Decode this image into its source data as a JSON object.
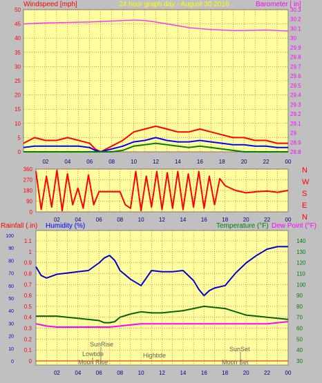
{
  "header": {
    "title": "24 hour graph day - August 30 2016",
    "left_label": "Windspeed [mph]",
    "right_label": "Barometer [ in]"
  },
  "middle": {
    "direction_labels": [
      "N",
      "W",
      "S",
      "E",
      "N"
    ]
  },
  "bottom": {
    "left_label_rain": "Rainfall (.in)",
    "left_label_humidity": "Humidity (%)",
    "right_label_temp": "Temperature (°F)",
    "right_label_dew": "Dew Point (°F)",
    "events": [
      "SunRise",
      "Lowtide",
      "Moon Rise",
      "Hightide",
      "SunSet",
      "Moon Set"
    ]
  },
  "colors": {
    "plot_bg": "#ffffa0",
    "frame_bg": "#c0c0c0",
    "wind_gust": "#ff0000",
    "wind_avg": "#0000ff",
    "wind_low": "#008000",
    "barometer": "#ff33ff",
    "direction": "#ff0000",
    "humidity": "#0000cc",
    "temperature": "#006400",
    "dewpoint": "#ff00ff",
    "title_text": "#ffff00",
    "grid": "#ff0000"
  },
  "chart_data": [
    {
      "type": "line",
      "title": "24 hour graph day - August 30 2016",
      "x_ticks": [
        "02",
        "04",
        "06",
        "08",
        "10",
        "12",
        "14",
        "16",
        "18",
        "20",
        "22",
        "00"
      ],
      "ylabel": "Windspeed [mph]",
      "ylim": [
        0,
        50
      ],
      "y_ticks": [
        0,
        5,
        10,
        15,
        20,
        25,
        30,
        35,
        40,
        45,
        50
      ],
      "y2label": "Barometer [ in]",
      "y2lim": [
        28.8,
        30.3
      ],
      "y2_ticks": [
        "28.8",
        "28.9",
        "29",
        "29.1",
        "29.2",
        "29.3",
        "29.4",
        "29.5",
        "29.6",
        "29.7",
        "29.8",
        "29.9",
        "30",
        "30.1",
        "30.2",
        "30.3"
      ],
      "series": [
        {
          "name": "Barometer",
          "axis": "right",
          "x": [
            0,
            2,
            4,
            6,
            8,
            9,
            10,
            11,
            12,
            13,
            14,
            15,
            16,
            17,
            18,
            19,
            20,
            21,
            22,
            23,
            24
          ],
          "values": [
            30.15,
            30.16,
            30.165,
            30.17,
            30.18,
            30.185,
            30.19,
            30.185,
            30.17,
            30.15,
            30.13,
            30.11,
            30.1,
            30.09,
            30.085,
            30.08,
            30.08,
            30.082,
            30.085,
            30.08,
            30.075
          ]
        },
        {
          "name": "Windspeed gust",
          "axis": "left",
          "x": [
            0,
            1,
            2,
            3,
            4,
            5,
            6,
            6.5,
            7,
            8,
            9,
            10,
            11,
            12,
            13,
            14,
            15,
            16,
            17,
            18,
            19,
            20,
            21,
            22,
            23,
            24
          ],
          "values": [
            3,
            5,
            4,
            4,
            5,
            4,
            3,
            1,
            0,
            2,
            4,
            7,
            8,
            9,
            8,
            7,
            7,
            8,
            7,
            6,
            5,
            5,
            4,
            4,
            3,
            3
          ]
        },
        {
          "name": "Windspeed average",
          "axis": "left",
          "x": [
            0,
            1,
            2,
            3,
            4,
            5,
            6,
            6.5,
            7,
            8,
            9,
            10,
            11,
            12,
            13,
            14,
            15,
            16,
            17,
            18,
            19,
            20,
            21,
            22,
            23,
            24
          ],
          "values": [
            1.5,
            2,
            2,
            2,
            2,
            2,
            1.5,
            0.5,
            0,
            1,
            2,
            3.5,
            4,
            5,
            4,
            3.5,
            3.5,
            4,
            3.5,
            3,
            2.5,
            2.5,
            2,
            2,
            1.5,
            1.5
          ]
        },
        {
          "name": "Windspeed low",
          "axis": "left",
          "x": [
            0,
            2,
            6,
            8,
            9,
            10,
            11,
            12,
            13,
            14,
            15,
            16,
            17,
            18,
            19,
            20,
            22,
            24
          ],
          "values": [
            0,
            0,
            0,
            0,
            0.5,
            2,
            2.5,
            3,
            2.5,
            2,
            1.5,
            2,
            1.5,
            1,
            0.5,
            0,
            0,
            0
          ]
        }
      ]
    },
    {
      "type": "line",
      "x_ticks": [
        "02",
        "04",
        "06",
        "08",
        "10",
        "12",
        "14",
        "16",
        "18",
        "20",
        "22",
        "00"
      ],
      "ylim": [
        0,
        360
      ],
      "y_ticks": [
        0,
        90,
        180,
        270,
        360
      ],
      "series": [
        {
          "name": "Wind direction",
          "x": [
            0,
            0.5,
            1,
            1.5,
            2,
            2.5,
            3,
            3.5,
            4,
            4.5,
            5,
            5.5,
            6,
            7,
            8,
            8.5,
            9,
            9.5,
            10,
            10.5,
            11,
            11.5,
            12,
            12.5,
            13,
            13.5,
            14,
            14.5,
            15,
            15.5,
            16,
            16.5,
            17,
            17.5,
            18,
            19,
            20,
            21,
            22,
            23,
            24
          ],
          "values": [
            340,
            20,
            300,
            40,
            350,
            10,
            320,
            60,
            200,
            30,
            310,
            60,
            170,
            170,
            170,
            60,
            30,
            340,
            10,
            300,
            40,
            340,
            20,
            330,
            30,
            340,
            20,
            320,
            40,
            340,
            30,
            300,
            60,
            280,
            220,
            180,
            160,
            170,
            175,
            165,
            180
          ]
        }
      ]
    },
    {
      "type": "line",
      "x_ticks": [
        "02",
        "04",
        "06",
        "08",
        "10",
        "12",
        "14",
        "16",
        "18",
        "20",
        "22",
        "00"
      ],
      "ylabel": "Rainfall (.in) / Humidity (%)",
      "ylim_humidity": [
        0,
        100
      ],
      "y_ticks_humidity": [
        0,
        10,
        20,
        30,
        40,
        50,
        60,
        70,
        80,
        90,
        100
      ],
      "ylim_rain": [
        0,
        1.1
      ],
      "y_ticks_rain": [
        "0",
        "0.1",
        "0.2",
        "0.3",
        "0.4",
        "0.5",
        "0.6",
        "0.7",
        "0.8",
        "0.9",
        "1",
        "1.1"
      ],
      "y2label": "Temperature (°F) / Dew Point (°F)",
      "y2lim": [
        30,
        140
      ],
      "y2_ticks": [
        30,
        40,
        50,
        60,
        70,
        80,
        90,
        100,
        110,
        120,
        130,
        140
      ],
      "series": [
        {
          "name": "Humidity",
          "axis": "left",
          "x": [
            0,
            0.5,
            1,
            2,
            3,
            4,
            5,
            6,
            6.5,
            7,
            7.5,
            8,
            9,
            10,
            10.5,
            11,
            12,
            13,
            14,
            15,
            15.5,
            16,
            16.5,
            17,
            18,
            19,
            20,
            21,
            22,
            23,
            24
          ],
          "values": [
            75,
            68,
            66,
            69,
            70,
            71,
            72,
            78,
            82,
            84,
            80,
            72,
            65,
            60,
            66,
            72,
            71,
            71,
            72,
            64,
            57,
            52,
            56,
            58,
            60,
            70,
            78,
            84,
            89,
            91,
            91
          ]
        },
        {
          "name": "Temperature",
          "axis": "right",
          "x": [
            0,
            1,
            2,
            3,
            4,
            5,
            6,
            6.5,
            7,
            7.5,
            8,
            9,
            10,
            11,
            12,
            13,
            14,
            15,
            16,
            17,
            18,
            19,
            20,
            21,
            22,
            23,
            24
          ],
          "values": [
            71,
            71,
            71,
            70,
            69,
            68,
            67,
            65,
            65,
            66,
            70,
            73,
            75,
            74,
            74,
            75,
            76,
            78,
            80,
            79,
            78,
            75,
            72,
            71,
            70,
            69,
            68
          ]
        },
        {
          "name": "Dew Point",
          "axis": "right",
          "x": [
            0,
            1,
            2,
            3,
            4,
            5,
            6,
            7,
            8,
            9,
            10,
            11,
            12,
            13,
            14,
            15,
            16,
            17,
            18,
            19,
            20,
            21,
            22,
            23,
            24
          ],
          "values": [
            64,
            62,
            61,
            61,
            61,
            61,
            61,
            61,
            62,
            63,
            64,
            64,
            64,
            64,
            64,
            64,
            64,
            64,
            64,
            64,
            64,
            64,
            64,
            65,
            66
          ]
        },
        {
          "name": "Rainfall",
          "axis": "left",
          "x": [
            0,
            24
          ],
          "values": [
            0,
            0
          ]
        }
      ]
    }
  ]
}
